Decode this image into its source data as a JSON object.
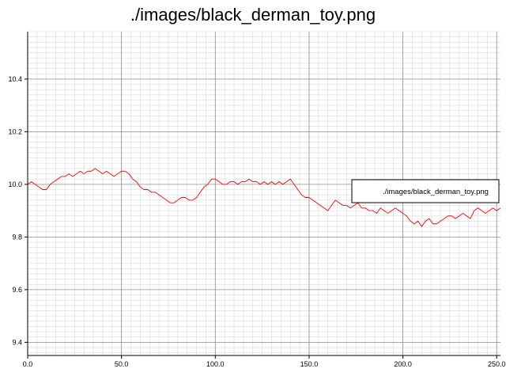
{
  "chart_data": {
    "type": "line",
    "title": "./images/black_derman_toy.png",
    "xlabel": "",
    "ylabel": "",
    "xlim": [
      0,
      252
    ],
    "ylim": [
      9.35,
      10.58
    ],
    "x_ticks": [
      0,
      50,
      100,
      150,
      200,
      250
    ],
    "x_tick_labels": [
      "0.0",
      "50.0",
      "100.0",
      "150.0",
      "200.0",
      "250.0"
    ],
    "y_ticks": [
      9.4,
      9.6,
      9.8,
      10.0,
      10.2,
      10.4
    ],
    "y_tick_labels": [
      "9.4",
      "9.6",
      "9.8",
      "10.0",
      "10.2",
      "10.4"
    ],
    "grid": true,
    "legend_position": "right",
    "series": [
      {
        "name": "./images/black_derman_toy.png",
        "color": "#ff0000",
        "x": [
          0,
          2,
          4,
          6,
          8,
          10,
          12,
          14,
          16,
          18,
          20,
          22,
          24,
          26,
          28,
          30,
          32,
          34,
          36,
          38,
          40,
          42,
          44,
          46,
          48,
          50,
          52,
          54,
          56,
          58,
          60,
          62,
          64,
          66,
          68,
          70,
          72,
          74,
          76,
          78,
          80,
          82,
          84,
          86,
          88,
          90,
          92,
          94,
          96,
          98,
          100,
          102,
          104,
          106,
          108,
          110,
          112,
          114,
          116,
          118,
          120,
          122,
          124,
          126,
          128,
          130,
          132,
          134,
          136,
          138,
          140,
          142,
          144,
          146,
          148,
          150,
          152,
          154,
          156,
          158,
          160,
          162,
          164,
          166,
          168,
          170,
          172,
          174,
          176,
          178,
          180,
          182,
          184,
          186,
          188,
          190,
          192,
          194,
          196,
          198,
          200,
          202,
          204,
          206,
          208,
          210,
          212,
          214,
          216,
          218,
          220,
          222,
          224,
          226,
          228,
          230,
          232,
          234,
          236,
          238,
          240,
          242,
          244,
          246,
          248,
          250,
          252
        ],
        "y": [
          10.0,
          10.01,
          10.0,
          9.99,
          9.98,
          9.98,
          10.0,
          10.01,
          10.02,
          10.03,
          10.03,
          10.04,
          10.03,
          10.04,
          10.05,
          10.04,
          10.05,
          10.05,
          10.06,
          10.05,
          10.04,
          10.05,
          10.04,
          10.03,
          10.04,
          10.05,
          10.05,
          10.04,
          10.02,
          10.01,
          9.99,
          9.98,
          9.98,
          9.97,
          9.97,
          9.96,
          9.95,
          9.94,
          9.93,
          9.93,
          9.94,
          9.95,
          9.95,
          9.94,
          9.94,
          9.95,
          9.97,
          9.99,
          10.0,
          10.02,
          10.02,
          10.01,
          10.0,
          10.0,
          10.01,
          10.01,
          10.0,
          10.01,
          10.01,
          10.02,
          10.01,
          10.01,
          10.0,
          10.01,
          10.0,
          10.01,
          10.0,
          10.01,
          10.0,
          10.01,
          10.02,
          10.0,
          9.98,
          9.96,
          9.95,
          9.95,
          9.94,
          9.93,
          9.92,
          9.91,
          9.9,
          9.92,
          9.94,
          9.93,
          9.92,
          9.92,
          9.91,
          9.92,
          9.93,
          9.91,
          9.91,
          9.9,
          9.9,
          9.89,
          9.91,
          9.9,
          9.89,
          9.9,
          9.91,
          9.9,
          9.89,
          9.88,
          9.86,
          9.85,
          9.86,
          9.84,
          9.86,
          9.87,
          9.85,
          9.85,
          9.86,
          9.87,
          9.88,
          9.88,
          9.87,
          9.88,
          9.89,
          9.88,
          9.87,
          9.9,
          9.91,
          9.9,
          9.89,
          9.9,
          9.91,
          9.9,
          9.91
        ]
      }
    ]
  }
}
